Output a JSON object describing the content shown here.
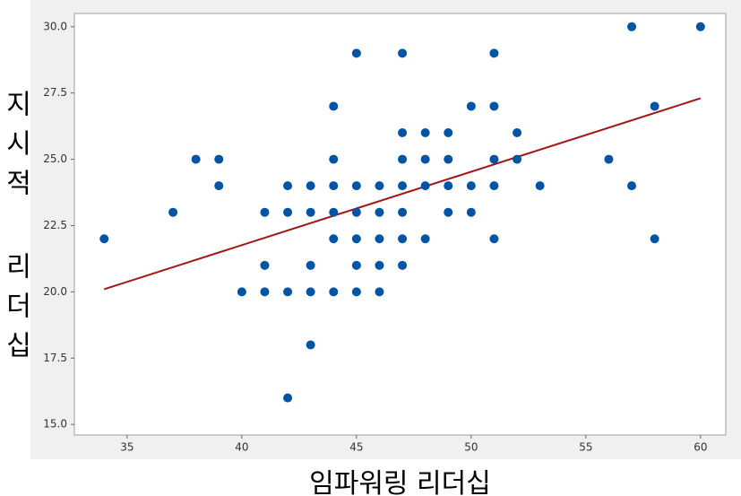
{
  "chart_data": {
    "type": "scatter",
    "x_label": "임파워링 리더십",
    "y_label": "지시적 리더십",
    "x": [
      34,
      37,
      38,
      39,
      39,
      40,
      41,
      41,
      41,
      42,
      42,
      42,
      42,
      43,
      43,
      43,
      43,
      43,
      44,
      44,
      44,
      44,
      44,
      44,
      45,
      45,
      45,
      45,
      45,
      45,
      46,
      46,
      46,
      46,
      46,
      47,
      47,
      47,
      47,
      47,
      47,
      47,
      48,
      48,
      48,
      48,
      49,
      49,
      49,
      49,
      50,
      50,
      50,
      51,
      51,
      51,
      51,
      51,
      52,
      52,
      53,
      56,
      57,
      57,
      58,
      58,
      60
    ],
    "values": [
      22,
      23,
      25,
      25,
      24,
      20,
      23,
      21,
      20,
      24,
      23,
      20,
      16,
      24,
      23,
      21,
      20,
      18,
      27,
      25,
      24,
      23,
      22,
      20,
      29,
      24,
      23,
      22,
      21,
      20,
      24,
      23,
      22,
      21,
      20,
      29,
      26,
      25,
      24,
      23,
      22,
      21,
      26,
      25,
      24,
      22,
      26,
      25,
      24,
      23,
      27,
      24,
      23,
      29,
      27,
      25,
      24,
      22,
      26,
      25,
      24,
      25,
      30,
      24,
      27,
      22,
      30
    ],
    "color": "#0054a6",
    "trend_line": {
      "x": [
        34,
        60
      ],
      "values": [
        20.1,
        27.3
      ],
      "color": "#a31515"
    },
    "xlim": [
      32.7,
      61.1
    ],
    "ylim": [
      14.6,
      30.5
    ],
    "xticks": [
      35,
      40,
      45,
      50,
      55,
      60
    ],
    "yticks": [
      {
        "value": 15,
        "label": "15.0"
      },
      {
        "value": 17.5,
        "label": "17.5"
      },
      {
        "value": 20,
        "label": "20.0"
      },
      {
        "value": 22.5,
        "label": "22.5"
      },
      {
        "value": 25,
        "label": "25.0"
      },
      {
        "value": 27.5,
        "label": "27.5"
      },
      {
        "value": 30,
        "label": "30.0"
      }
    ]
  }
}
